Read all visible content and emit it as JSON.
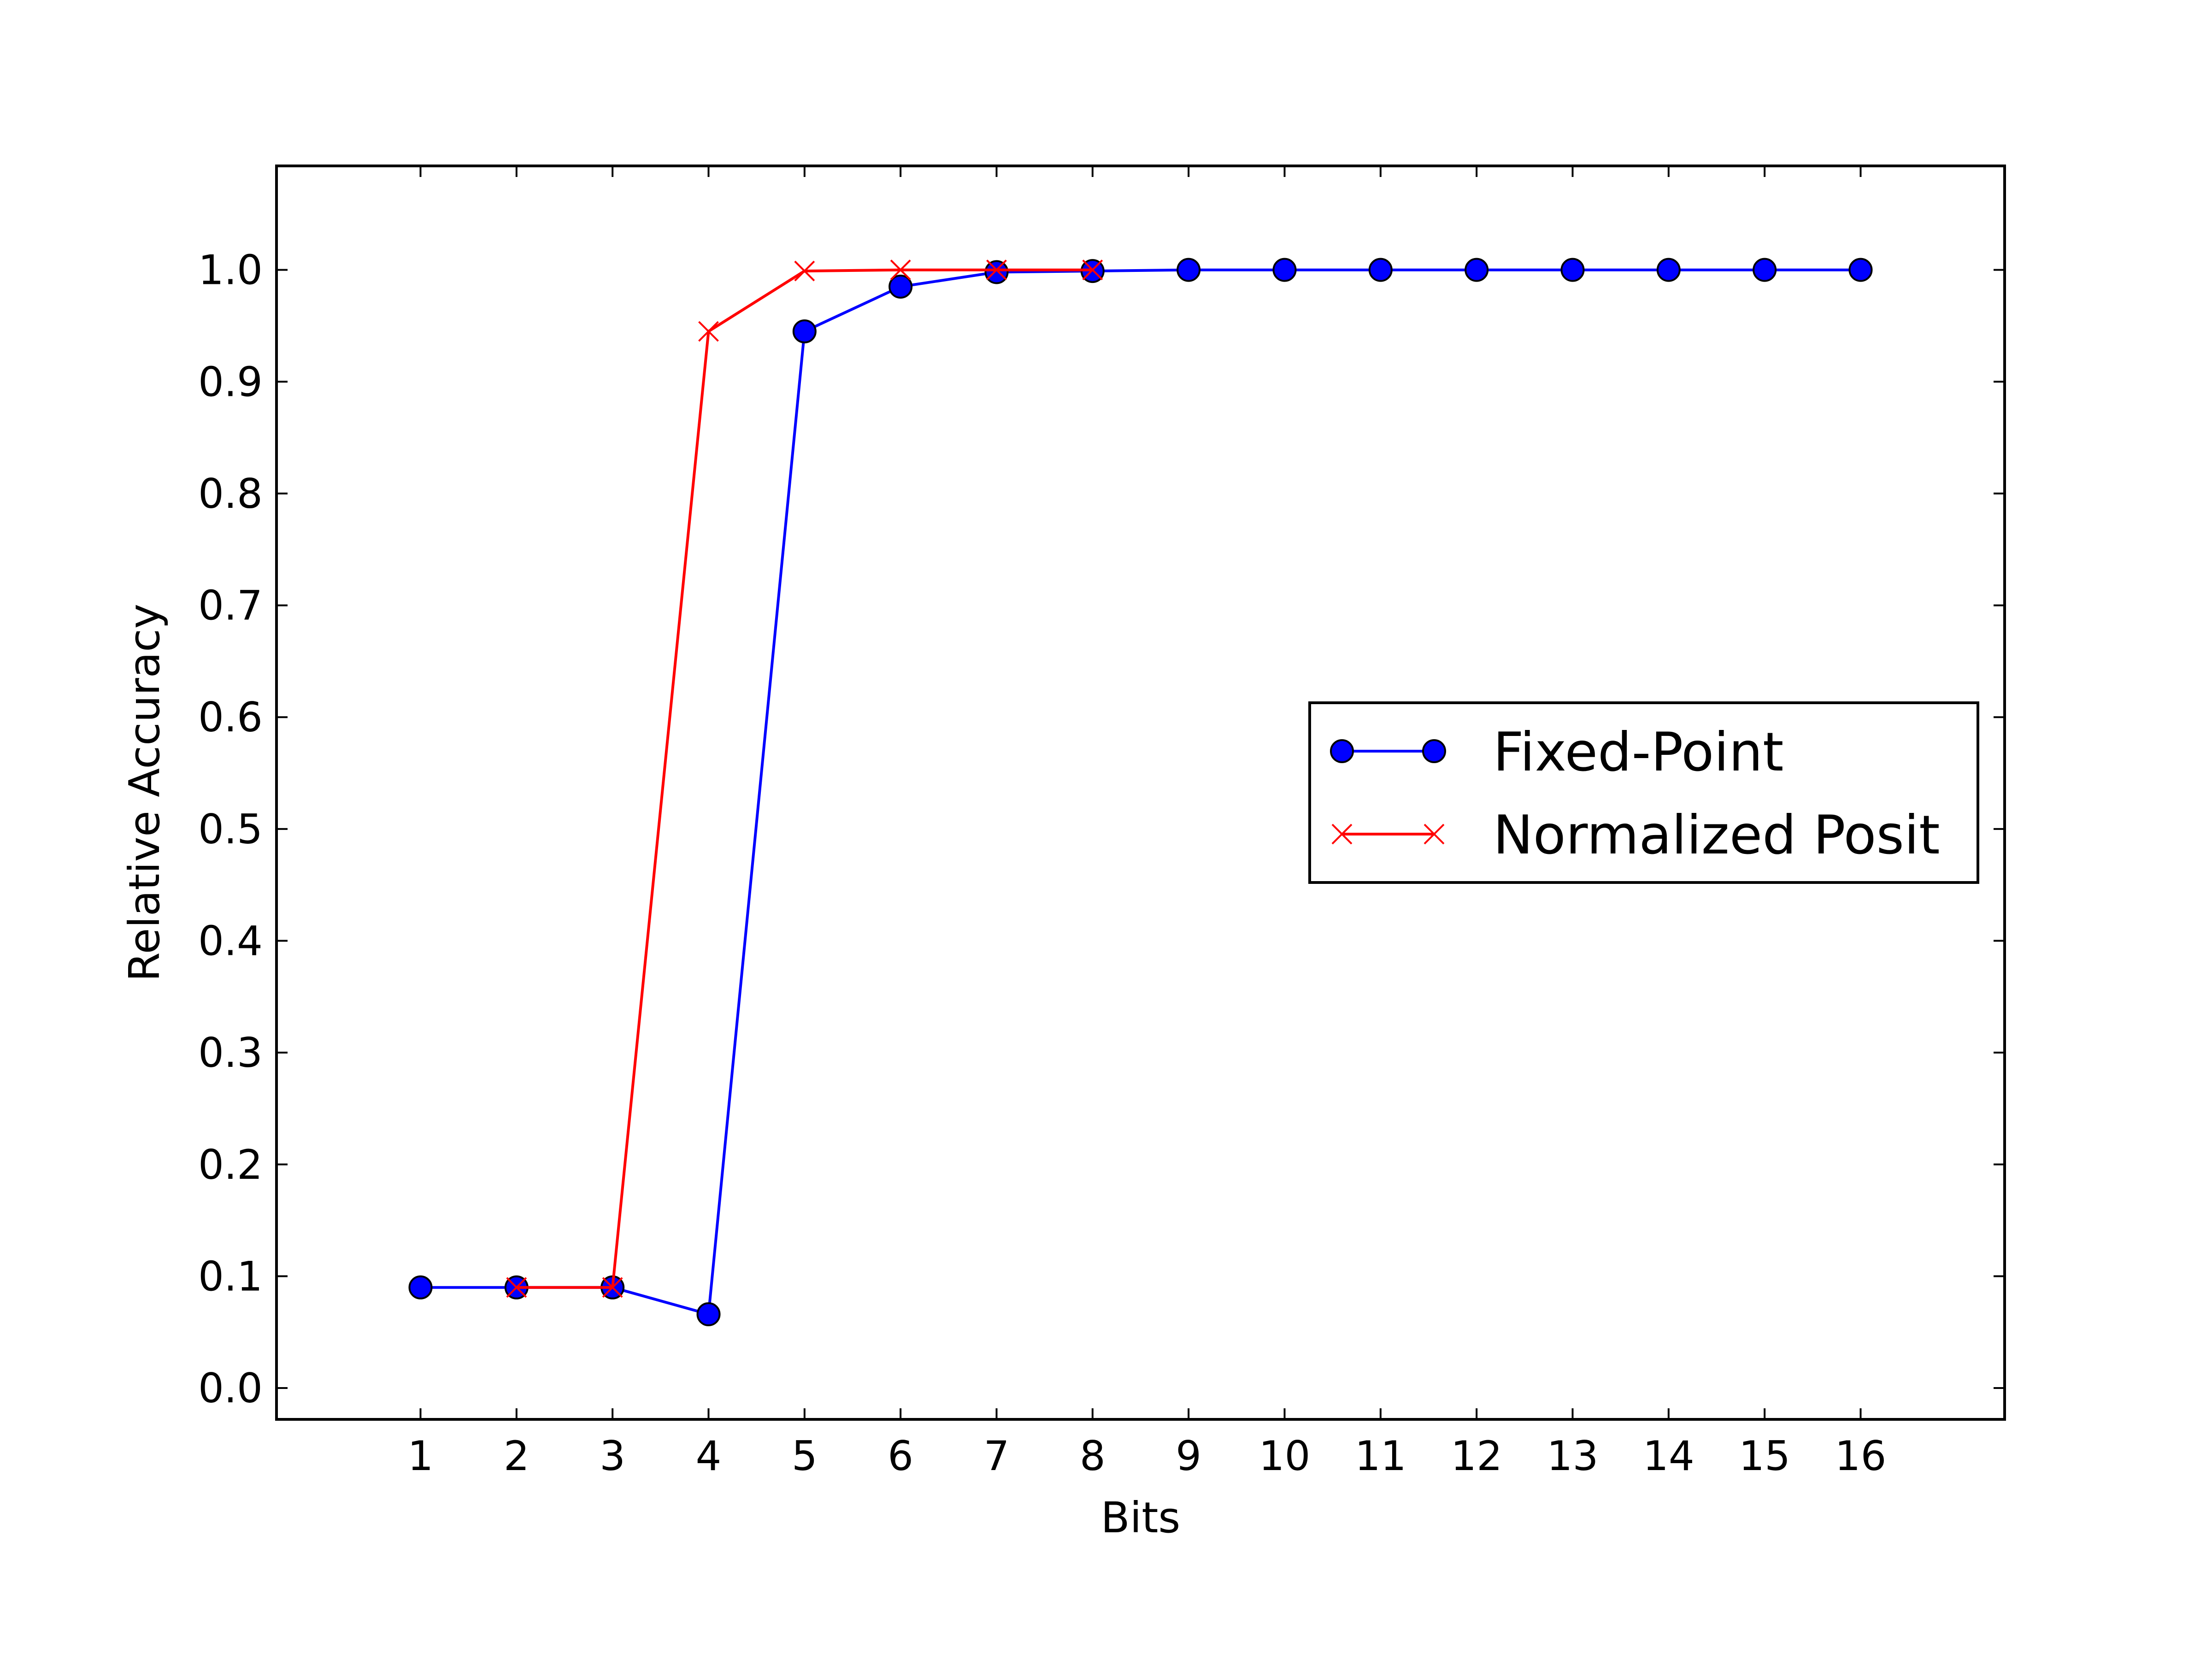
{
  "chart_data": {
    "type": "line",
    "title": "",
    "xlabel": "Bits",
    "ylabel": "Relative Accuracy",
    "xlim": [
      -0.5,
      17.5
    ],
    "ylim": [
      -0.028,
      1.093
    ],
    "xticks": [
      "1",
      "2",
      "3",
      "4",
      "5",
      "6",
      "7",
      "8",
      "9",
      "10",
      "11",
      "12",
      "13",
      "14",
      "15",
      "16"
    ],
    "yticks": [
      "0.0",
      "0.1",
      "0.2",
      "0.3",
      "0.4",
      "0.5",
      "0.6",
      "0.7",
      "0.8",
      "0.9",
      "1.0"
    ],
    "grid": false,
    "legend_position": "center-right",
    "series": [
      {
        "name": "Fixed-Point",
        "color": "#0000ff",
        "marker": "circle",
        "x": [
          1,
          2,
          3,
          4,
          5,
          6,
          7,
          8,
          9,
          10,
          11,
          12,
          13,
          14,
          15,
          16
        ],
        "y": [
          0.09,
          0.09,
          0.09,
          0.066,
          0.945,
          0.985,
          0.998,
          0.999,
          1.0,
          1.0,
          1.0,
          1.0,
          1.0,
          1.0,
          1.0,
          1.0
        ]
      },
      {
        "name": "Normalized Posit",
        "color": "#ff0000",
        "marker": "x",
        "x": [
          2,
          3,
          4,
          5,
          6,
          7,
          8
        ],
        "y": [
          0.09,
          0.09,
          0.945,
          0.999,
          1.0,
          1.0,
          1.0
        ]
      }
    ]
  }
}
